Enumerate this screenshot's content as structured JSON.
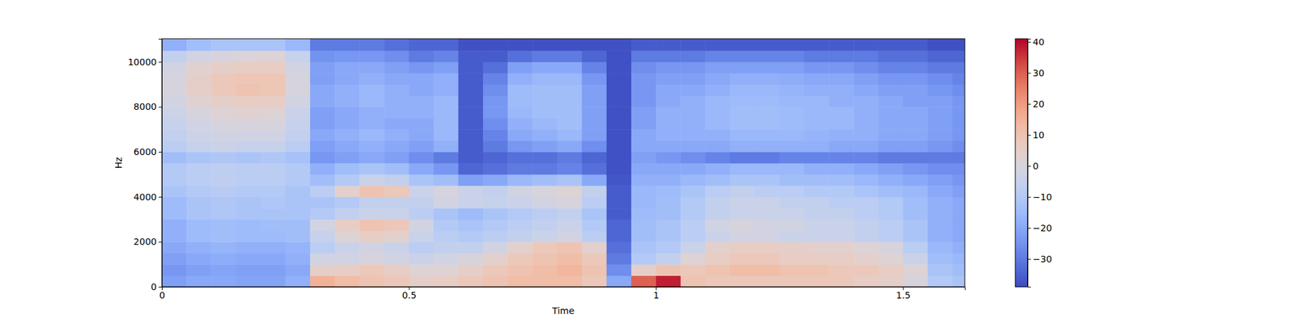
{
  "chart_data": {
    "type": "heatmap",
    "x_label": "Time",
    "y_label": "Hz",
    "xlim": [
      0,
      1.625
    ],
    "ylim": [
      0,
      11025
    ],
    "xticks": [
      0,
      0.5,
      1,
      1.5
    ],
    "yticks": [
      0,
      2000,
      4000,
      6000,
      8000,
      10000
    ],
    "time_bins": [
      0,
      0.05,
      0.1,
      0.15,
      0.2,
      0.25,
      0.3,
      0.35,
      0.4,
      0.45,
      0.5,
      0.55,
      0.6,
      0.65,
      0.7,
      0.75,
      0.8,
      0.85,
      0.9,
      0.95,
      1.0,
      1.05,
      1.1,
      1.15,
      1.2,
      1.25,
      1.3,
      1.35,
      1.4,
      1.45,
      1.5,
      1.55,
      1.6,
      1.625
    ],
    "freq_bins": [
      0,
      500,
      1000,
      1500,
      2000,
      2500,
      3000,
      3500,
      4000,
      4500,
      5000,
      5500,
      6000,
      6500,
      7000,
      7500,
      8000,
      8500,
      9000,
      9500,
      10000,
      10500,
      11025
    ],
    "cells": [
      [
        -22,
        -24,
        -22,
        -20,
        -18,
        -18,
        -15,
        -15,
        -12,
        -10,
        -10,
        -14,
        -8,
        -6,
        -5,
        -3,
        -2,
        0,
        0,
        -2,
        -6,
        -18
      ],
      [
        -20,
        -22,
        -20,
        -18,
        -15,
        -15,
        -12,
        -12,
        -10,
        -8,
        -8,
        -12,
        -5,
        -3,
        -2,
        0,
        3,
        5,
        5,
        3,
        -2,
        -14
      ],
      [
        -20,
        -21,
        -19,
        -17,
        -14,
        -14,
        -11,
        -11,
        -9,
        -7,
        -7,
        -11,
        -4,
        -2,
        0,
        2,
        5,
        8,
        8,
        5,
        0,
        -12
      ],
      [
        -21,
        -22,
        -20,
        -18,
        -15,
        -15,
        -12,
        -12,
        -10,
        -8,
        -8,
        -12,
        -5,
        -2,
        0,
        3,
        6,
        10,
        9,
        6,
        1,
        -12
      ],
      [
        -21,
        -22,
        -20,
        -18,
        -15,
        -14,
        -12,
        -11,
        -10,
        -8,
        -8,
        -11,
        -5,
        -2,
        0,
        2,
        6,
        9,
        9,
        6,
        2,
        -12
      ],
      [
        -18,
        -20,
        -18,
        -17,
        -14,
        -14,
        -12,
        -12,
        -12,
        -10,
        -10,
        -13,
        -8,
        -6,
        -5,
        -4,
        -2,
        0,
        0,
        -2,
        -5,
        -16
      ],
      [
        15,
        5,
        -2,
        -8,
        -5,
        -2,
        -10,
        -12,
        -8,
        -14,
        -18,
        -24,
        -22,
        -20,
        -22,
        -22,
        -20,
        -20,
        -22,
        -22,
        -25,
        -30
      ],
      [
        12,
        6,
        -2,
        -4,
        2,
        6,
        -6,
        -10,
        4,
        -10,
        -14,
        -22,
        -20,
        -18,
        -20,
        -20,
        -18,
        -18,
        -20,
        -20,
        -24,
        -30
      ],
      [
        10,
        8,
        0,
        -2,
        6,
        10,
        -4,
        -6,
        10,
        -4,
        -12,
        -20,
        -18,
        -16,
        -18,
        -18,
        -16,
        -16,
        -18,
        -20,
        -24,
        -30
      ],
      [
        8,
        6,
        -2,
        -4,
        4,
        8,
        -4,
        -6,
        8,
        -6,
        -14,
        -22,
        -20,
        -18,
        -20,
        -18,
        -18,
        -18,
        -20,
        -22,
        -26,
        -32
      ],
      [
        5,
        2,
        -4,
        -8,
        -4,
        -2,
        -8,
        -6,
        -4,
        -12,
        -20,
        -26,
        -22,
        -20,
        -20,
        -18,
        -18,
        -20,
        -20,
        -24,
        -30,
        -34
      ],
      [
        6,
        2,
        -2,
        -6,
        -8,
        -10,
        -12,
        -2,
        0,
        -14,
        -24,
        -30,
        -18,
        -16,
        -16,
        -16,
        -16,
        -18,
        -18,
        -22,
        -28,
        -34
      ],
      [
        8,
        5,
        0,
        -6,
        -10,
        -12,
        -15,
        -4,
        -4,
        -22,
        -34,
        -36,
        -36,
        -36,
        -36,
        -36,
        -36,
        -36,
        -36,
        -36,
        -36,
        -38
      ],
      [
        10,
        8,
        4,
        -2,
        -8,
        -10,
        -12,
        -5,
        -6,
        -20,
        -32,
        -34,
        -30,
        -28,
        -26,
        -24,
        -24,
        -26,
        -28,
        -32,
        -36,
        -38
      ],
      [
        12,
        10,
        8,
        4,
        -6,
        -8,
        -10,
        -4,
        -2,
        -16,
        -30,
        -32,
        -24,
        -20,
        -18,
        -16,
        -15,
        -15,
        -18,
        -22,
        -32,
        -38
      ],
      [
        12,
        12,
        10,
        8,
        -4,
        -6,
        -8,
        -2,
        0,
        -14,
        -30,
        -32,
        -22,
        -18,
        -16,
        -14,
        -14,
        -14,
        -16,
        -20,
        -30,
        -38
      ],
      [
        12,
        14,
        12,
        10,
        -2,
        -4,
        -6,
        0,
        2,
        -12,
        -28,
        -30,
        -20,
        -16,
        -14,
        -14,
        -14,
        -14,
        -16,
        -20,
        -30,
        -38
      ],
      [
        8,
        10,
        8,
        4,
        -8,
        -10,
        -12,
        -8,
        -6,
        -20,
        -32,
        -34,
        -26,
        -22,
        -22,
        -22,
        -22,
        -22,
        -24,
        -28,
        -34,
        -38
      ],
      [
        -20,
        -26,
        -30,
        -32,
        -34,
        -34,
        -36,
        -36,
        -36,
        -37,
        -38,
        -38,
        -38,
        -38,
        -38,
        -38,
        -38,
        -38,
        -38,
        -38,
        -38,
        -38
      ],
      [
        30,
        5,
        -10,
        -12,
        -14,
        -14,
        -15,
        -16,
        -16,
        -18,
        -20,
        -22,
        -20,
        -20,
        -22,
        -22,
        -24,
        -24,
        -24,
        -26,
        -30,
        -36
      ],
      [
        38,
        10,
        -6,
        -10,
        -12,
        -12,
        -14,
        -14,
        -15,
        -18,
        -20,
        -24,
        -20,
        -18,
        -18,
        -18,
        -20,
        -20,
        -22,
        -24,
        -30,
        -36
      ],
      [
        10,
        8,
        2,
        -4,
        -8,
        -8,
        -10,
        -10,
        -12,
        -16,
        -20,
        -26,
        -20,
        -18,
        -18,
        -18,
        -18,
        -20,
        -22,
        -24,
        -30,
        -36
      ],
      [
        8,
        10,
        6,
        4,
        -4,
        -2,
        -6,
        -6,
        -8,
        -14,
        -18,
        -28,
        -20,
        -18,
        -16,
        -16,
        -16,
        -18,
        -20,
        -22,
        -28,
        -36
      ],
      [
        8,
        12,
        8,
        6,
        -2,
        0,
        -4,
        -4,
        -6,
        -12,
        -16,
        -30,
        -18,
        -16,
        -14,
        -14,
        -15,
        -16,
        -18,
        -22,
        -28,
        -36
      ],
      [
        8,
        12,
        8,
        6,
        -2,
        -2,
        -4,
        -4,
        -8,
        -12,
        -16,
        -30,
        -18,
        -16,
        -14,
        -14,
        -15,
        -16,
        -18,
        -22,
        -28,
        -36
      ],
      [
        8,
        10,
        6,
        5,
        -4,
        -2,
        -4,
        -6,
        -8,
        -14,
        -16,
        -28,
        -18,
        -16,
        -15,
        -15,
        -16,
        -17,
        -19,
        -22,
        -28,
        -36
      ],
      [
        8,
        10,
        6,
        4,
        -4,
        -4,
        -6,
        -6,
        -10,
        -14,
        -18,
        -28,
        -18,
        -17,
        -16,
        -16,
        -16,
        -18,
        -20,
        -24,
        -30,
        -36
      ],
      [
        8,
        8,
        6,
        4,
        -4,
        -4,
        -6,
        -8,
        -10,
        -14,
        -18,
        -28,
        -20,
        -18,
        -16,
        -16,
        -18,
        -18,
        -20,
        -24,
        -30,
        -36
      ],
      [
        6,
        8,
        4,
        2,
        -6,
        -6,
        -8,
        -8,
        -12,
        -16,
        -20,
        -28,
        -20,
        -18,
        -18,
        -18,
        -18,
        -20,
        -22,
        -26,
        -30,
        -36
      ],
      [
        5,
        6,
        2,
        0,
        -8,
        -8,
        -10,
        -10,
        -14,
        -18,
        -22,
        -30,
        -22,
        -20,
        -20,
        -20,
        -20,
        -22,
        -24,
        -28,
        -32,
        -36
      ],
      [
        0,
        2,
        -4,
        -8,
        -12,
        -12,
        -14,
        -14,
        -16,
        -20,
        -24,
        -30,
        -22,
        -20,
        -20,
        -20,
        -22,
        -22,
        -24,
        -28,
        -32,
        -36
      ],
      [
        -10,
        -12,
        -14,
        -16,
        -18,
        -18,
        -18,
        -18,
        -20,
        -22,
        -26,
        -30,
        -24,
        -22,
        -22,
        -22,
        -22,
        -24,
        -26,
        -30,
        -34,
        -38
      ],
      [
        -12,
        -14,
        -16,
        -18,
        -20,
        -20,
        -20,
        -20,
        -22,
        -24,
        -26,
        -30,
        -26,
        -24,
        -24,
        -24,
        -24,
        -26,
        -28,
        -30,
        -34,
        -38
      ]
    ],
    "colorbar": {
      "range": [
        -39,
        41
      ],
      "ticks": [
        {
          "value": -30,
          "label": "−30"
        },
        {
          "value": -20,
          "label": "−20"
        },
        {
          "value": -10,
          "label": "−10"
        },
        0,
        10,
        20,
        30,
        40
      ]
    }
  }
}
